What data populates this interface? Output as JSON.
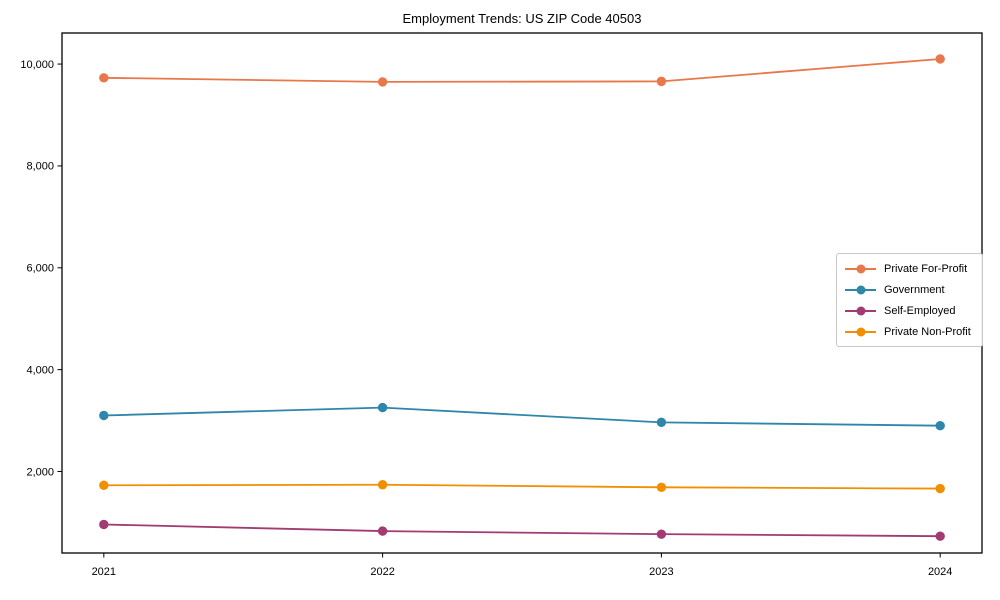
{
  "chart_data": {
    "type": "line",
    "title": "Employment Trends: US ZIP Code 40503",
    "xlabel": "",
    "ylabel": "",
    "categories": [
      "2021",
      "2022",
      "2023",
      "2024"
    ],
    "series": [
      {
        "name": "Private For-Profit",
        "color": "#E8784A",
        "values": [
          9730,
          9650,
          9660,
          10100
        ]
      },
      {
        "name": "Government",
        "color": "#2E86AB",
        "values": [
          3100,
          3255,
          2965,
          2900
        ]
      },
      {
        "name": "Self-Employed",
        "color": "#A23B72",
        "values": [
          960,
          830,
          770,
          730
        ]
      },
      {
        "name": "Private Non-Profit",
        "color": "#F18F01",
        "values": [
          1730,
          1740,
          1690,
          1665
        ]
      }
    ],
    "ylim": [
      400,
      10610
    ],
    "yticks": [
      2000,
      4000,
      6000,
      8000,
      10000
    ],
    "ytick_labels": [
      "2,000",
      "4,000",
      "6,000",
      "8,000",
      "10,000"
    ],
    "grid": false,
    "legend_position": "center-right",
    "marker": "circle"
  }
}
